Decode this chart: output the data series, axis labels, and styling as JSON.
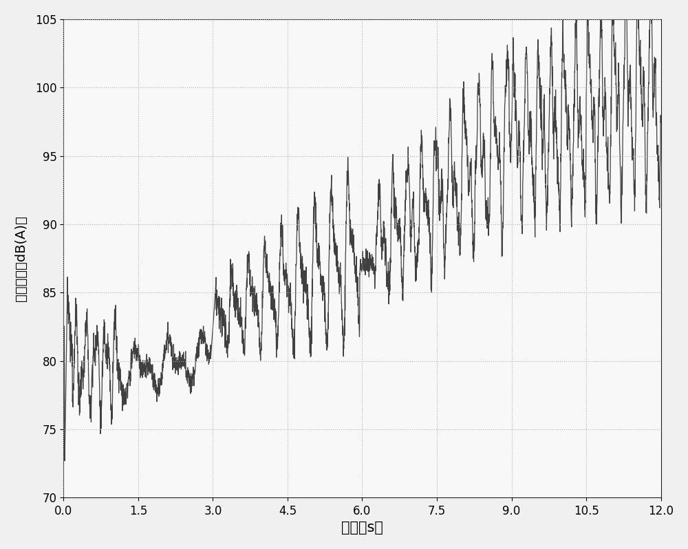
{
  "title": "",
  "xlabel": "时间（s）",
  "ylabel": "总声压级（dB(A)）",
  "xlim": [
    0,
    12
  ],
  "ylim": [
    70,
    105
  ],
  "xticks": [
    0,
    1.5,
    3,
    4.5,
    6,
    7.5,
    9,
    10.5,
    12
  ],
  "yticks": [
    70,
    75,
    80,
    85,
    90,
    95,
    100,
    105
  ],
  "line_color": "#404040",
  "line_width": 0.9,
  "grid_color": "#b0b0b0",
  "grid_style": ":",
  "background_color": "#f0f0f0",
  "plot_bg_color": "#f8f8f8",
  "xlabel_fontsize": 15,
  "ylabel_fontsize": 14,
  "tick_fontsize": 12
}
